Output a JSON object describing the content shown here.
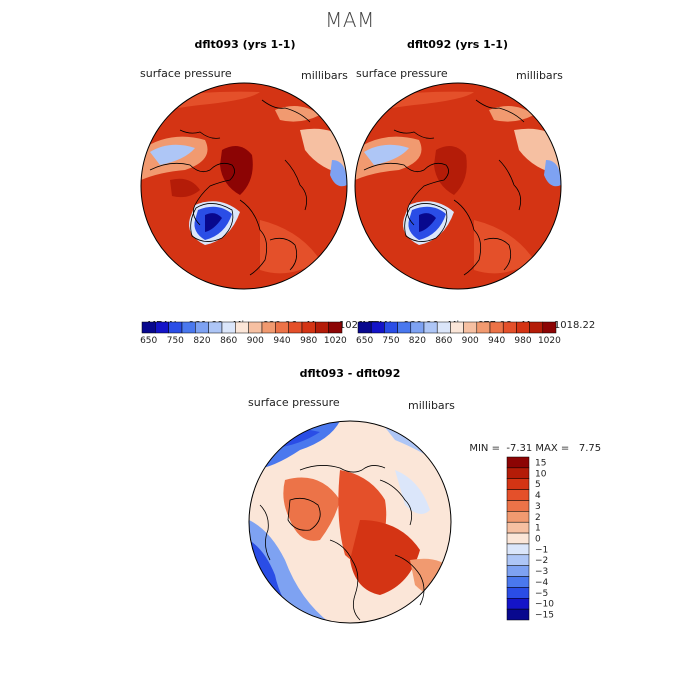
{
  "season_title": "MAM",
  "panels": [
    {
      "title": "dflt093 (yrs 1-1)",
      "variable_label": "surface pressure",
      "units_label": "millibars",
      "stats": {
        "mean_label": "MEAN=",
        "mean": "981.60",
        "min_label": "Min=",
        "min": "680.06",
        "max_label": "Max=",
        "max": "1021.56"
      }
    },
    {
      "title": "dflt092 (yrs 1-1)",
      "variable_label": "surface pressure",
      "units_label": "millibars",
      "stats": {
        "mean_label": "MEAN=",
        "mean": "980.06",
        "min_label": "Min=",
        "min": "677.98",
        "max_label": "Max=",
        "max": "1018.22"
      }
    }
  ],
  "diff_panel": {
    "title": "dflt093 - dflt092",
    "variable_label": "surface pressure",
    "units_label": "millibars",
    "min_label": "MIN =",
    "min": "-7.31",
    "max_label": "MAX =",
    "max": "7.75"
  },
  "chart_data": [
    {
      "type": "heatmap",
      "title": "dflt093 (yrs 1-1)",
      "projection": "north polar stereographic",
      "field": "surface pressure",
      "units": "millibars",
      "mean": 981.6,
      "min": 680.06,
      "max": 1021.56,
      "colorbar": {
        "orientation": "horizontal",
        "tick_labels": [
          "650",
          "750",
          "820",
          "860",
          "900",
          "940",
          "980",
          "1020"
        ],
        "colors": [
          "#08088e",
          "#1414c8",
          "#2a4de6",
          "#4a78ee",
          "#7ea2f2",
          "#aec6f6",
          "#dbe6fa",
          "#fbe6d8",
          "#f6c0a2",
          "#f19a70",
          "#ec7348",
          "#e4502a",
          "#d43414",
          "#b41c08",
          "#8c0404"
        ]
      }
    },
    {
      "type": "heatmap",
      "title": "dflt092 (yrs 1-1)",
      "projection": "north polar stereographic",
      "field": "surface pressure",
      "units": "millibars",
      "mean": 980.06,
      "min": 677.98,
      "max": 1018.22,
      "colorbar": {
        "orientation": "horizontal",
        "tick_labels": [
          "650",
          "750",
          "820",
          "860",
          "900",
          "940",
          "980",
          "1020"
        ],
        "colors": [
          "#08088e",
          "#1414c8",
          "#2a4de6",
          "#4a78ee",
          "#7ea2f2",
          "#aec6f6",
          "#dbe6fa",
          "#fbe6d8",
          "#f6c0a2",
          "#f19a70",
          "#ec7348",
          "#e4502a",
          "#d43414",
          "#b41c08",
          "#8c0404"
        ]
      }
    },
    {
      "type": "heatmap",
      "title": "dflt093 - dflt092",
      "projection": "north polar stereographic",
      "field": "surface pressure",
      "units": "millibars",
      "min": -7.31,
      "max": 7.75,
      "colorbar": {
        "orientation": "vertical",
        "tick_labels": [
          "15",
          "10",
          "5",
          "4",
          "3",
          "2",
          "1",
          "0",
          "−1",
          "−2",
          "−3",
          "−4",
          "−5",
          "−10",
          "−15"
        ],
        "colors": [
          "#8c0404",
          "#b41c08",
          "#d43414",
          "#e4502a",
          "#ec7348",
          "#f19a70",
          "#f6c0a2",
          "#fbe6d8",
          "#dbe6fa",
          "#aec6f6",
          "#7ea2f2",
          "#4a78ee",
          "#2a4de6",
          "#1414c8",
          "#08088e"
        ]
      }
    }
  ]
}
